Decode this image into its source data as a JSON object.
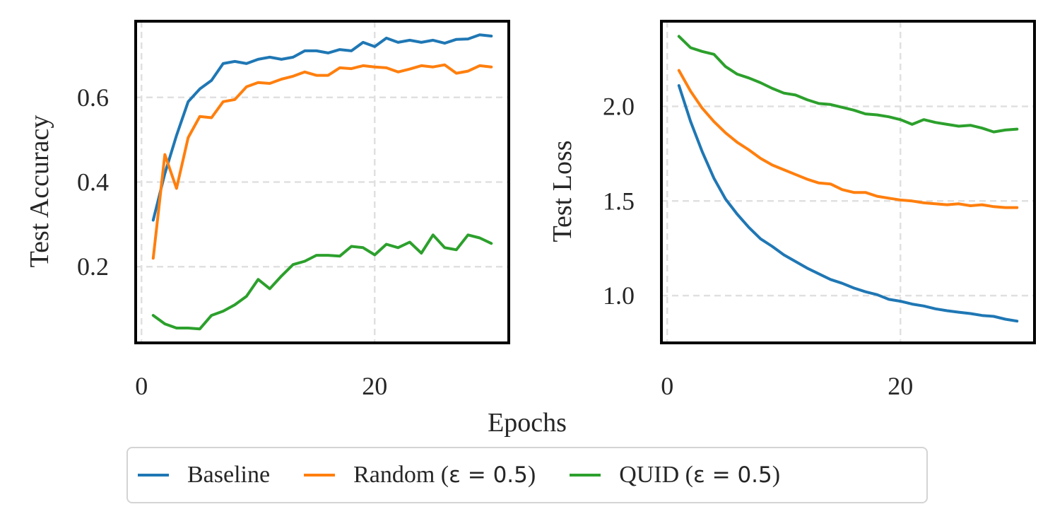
{
  "figure": {
    "xlabel": "Epochs",
    "colors": {
      "Baseline": "#1f77b4",
      "Random": "#ff7f0e",
      "QUID": "#2ca02c"
    }
  },
  "legend": {
    "items": [
      {
        "name": "Baseline",
        "prefix": "Baseline",
        "math": ""
      },
      {
        "name": "Random",
        "prefix": "Random (",
        "math": "ε = 0.5",
        "suffix": ")"
      },
      {
        "name": "QUID",
        "prefix": "QUID (",
        "math": "ε = 0.5",
        "suffix": ")"
      }
    ]
  },
  "chart_data": [
    {
      "type": "line",
      "title": "",
      "xlabel": "Epochs",
      "ylabel": "Test Accuracy",
      "xlim": [
        -0.5,
        31.5
      ],
      "ylim": [
        0.02,
        0.78
      ],
      "xticks": [
        0,
        20
      ],
      "xtick_labels": [
        "0",
        "20"
      ],
      "yticks": [
        0.2,
        0.4,
        0.6
      ],
      "ytick_labels": [
        "0.2",
        "0.4",
        "0.6"
      ],
      "grid": true,
      "x": [
        1,
        2,
        3,
        4,
        5,
        6,
        7,
        8,
        9,
        10,
        11,
        12,
        13,
        14,
        15,
        16,
        17,
        18,
        19,
        20,
        21,
        22,
        23,
        24,
        25,
        26,
        27,
        28,
        29,
        30
      ],
      "series": [
        {
          "name": "Baseline",
          "values": [
            0.31,
            0.42,
            0.51,
            0.59,
            0.62,
            0.64,
            0.68,
            0.685,
            0.68,
            0.69,
            0.695,
            0.69,
            0.695,
            0.71,
            0.71,
            0.705,
            0.713,
            0.71,
            0.73,
            0.72,
            0.74,
            0.73,
            0.735,
            0.73,
            0.735,
            0.728,
            0.737,
            0.738,
            0.748,
            0.745
          ]
        },
        {
          "name": "Random",
          "values": [
            0.22,
            0.465,
            0.385,
            0.505,
            0.555,
            0.552,
            0.59,
            0.595,
            0.625,
            0.635,
            0.633,
            0.643,
            0.65,
            0.66,
            0.652,
            0.652,
            0.67,
            0.668,
            0.675,
            0.672,
            0.67,
            0.66,
            0.667,
            0.675,
            0.672,
            0.677,
            0.657,
            0.662,
            0.675,
            0.672
          ]
        },
        {
          "name": "QUID",
          "values": [
            0.085,
            0.065,
            0.055,
            0.055,
            0.053,
            0.085,
            0.095,
            0.11,
            0.13,
            0.17,
            0.148,
            0.178,
            0.205,
            0.213,
            0.227,
            0.227,
            0.225,
            0.248,
            0.245,
            0.228,
            0.253,
            0.245,
            0.258,
            0.232,
            0.275,
            0.245,
            0.24,
            0.275,
            0.268,
            0.255
          ]
        }
      ]
    },
    {
      "type": "line",
      "title": "",
      "xlabel": "Epochs",
      "ylabel": "Test Loss",
      "xlim": [
        -0.5,
        31.5
      ],
      "ylim": [
        0.75,
        2.45
      ],
      "xticks": [
        0,
        20
      ],
      "xtick_labels": [
        "0",
        "20"
      ],
      "yticks": [
        1.0,
        1.5,
        2.0
      ],
      "ytick_labels": [
        "1.0",
        "1.5",
        "2.0"
      ],
      "grid": true,
      "x": [
        1,
        2,
        3,
        4,
        5,
        6,
        7,
        8,
        9,
        10,
        11,
        12,
        13,
        14,
        15,
        16,
        17,
        18,
        19,
        20,
        21,
        22,
        23,
        24,
        25,
        26,
        27,
        28,
        29,
        30
      ],
      "series": [
        {
          "name": "Baseline",
          "values": [
            2.11,
            1.92,
            1.76,
            1.62,
            1.51,
            1.43,
            1.36,
            1.3,
            1.26,
            1.215,
            1.18,
            1.145,
            1.115,
            1.085,
            1.065,
            1.04,
            1.02,
            1.005,
            0.98,
            0.97,
            0.955,
            0.945,
            0.93,
            0.92,
            0.912,
            0.905,
            0.895,
            0.89,
            0.875,
            0.865
          ]
        },
        {
          "name": "Random",
          "values": [
            2.19,
            2.08,
            1.99,
            1.92,
            1.86,
            1.81,
            1.77,
            1.725,
            1.69,
            1.665,
            1.64,
            1.615,
            1.595,
            1.59,
            1.56,
            1.545,
            1.545,
            1.525,
            1.515,
            1.505,
            1.5,
            1.49,
            1.485,
            1.48,
            1.485,
            1.475,
            1.48,
            1.47,
            1.465,
            1.465
          ]
        },
        {
          "name": "QUID",
          "values": [
            2.37,
            2.31,
            2.29,
            2.275,
            2.21,
            2.17,
            2.15,
            2.125,
            2.095,
            2.07,
            2.06,
            2.035,
            2.015,
            2.01,
            1.995,
            1.98,
            1.96,
            1.955,
            1.945,
            1.93,
            1.905,
            1.93,
            1.915,
            1.905,
            1.895,
            1.9,
            1.885,
            1.865,
            1.875,
            1.88
          ]
        }
      ]
    }
  ]
}
